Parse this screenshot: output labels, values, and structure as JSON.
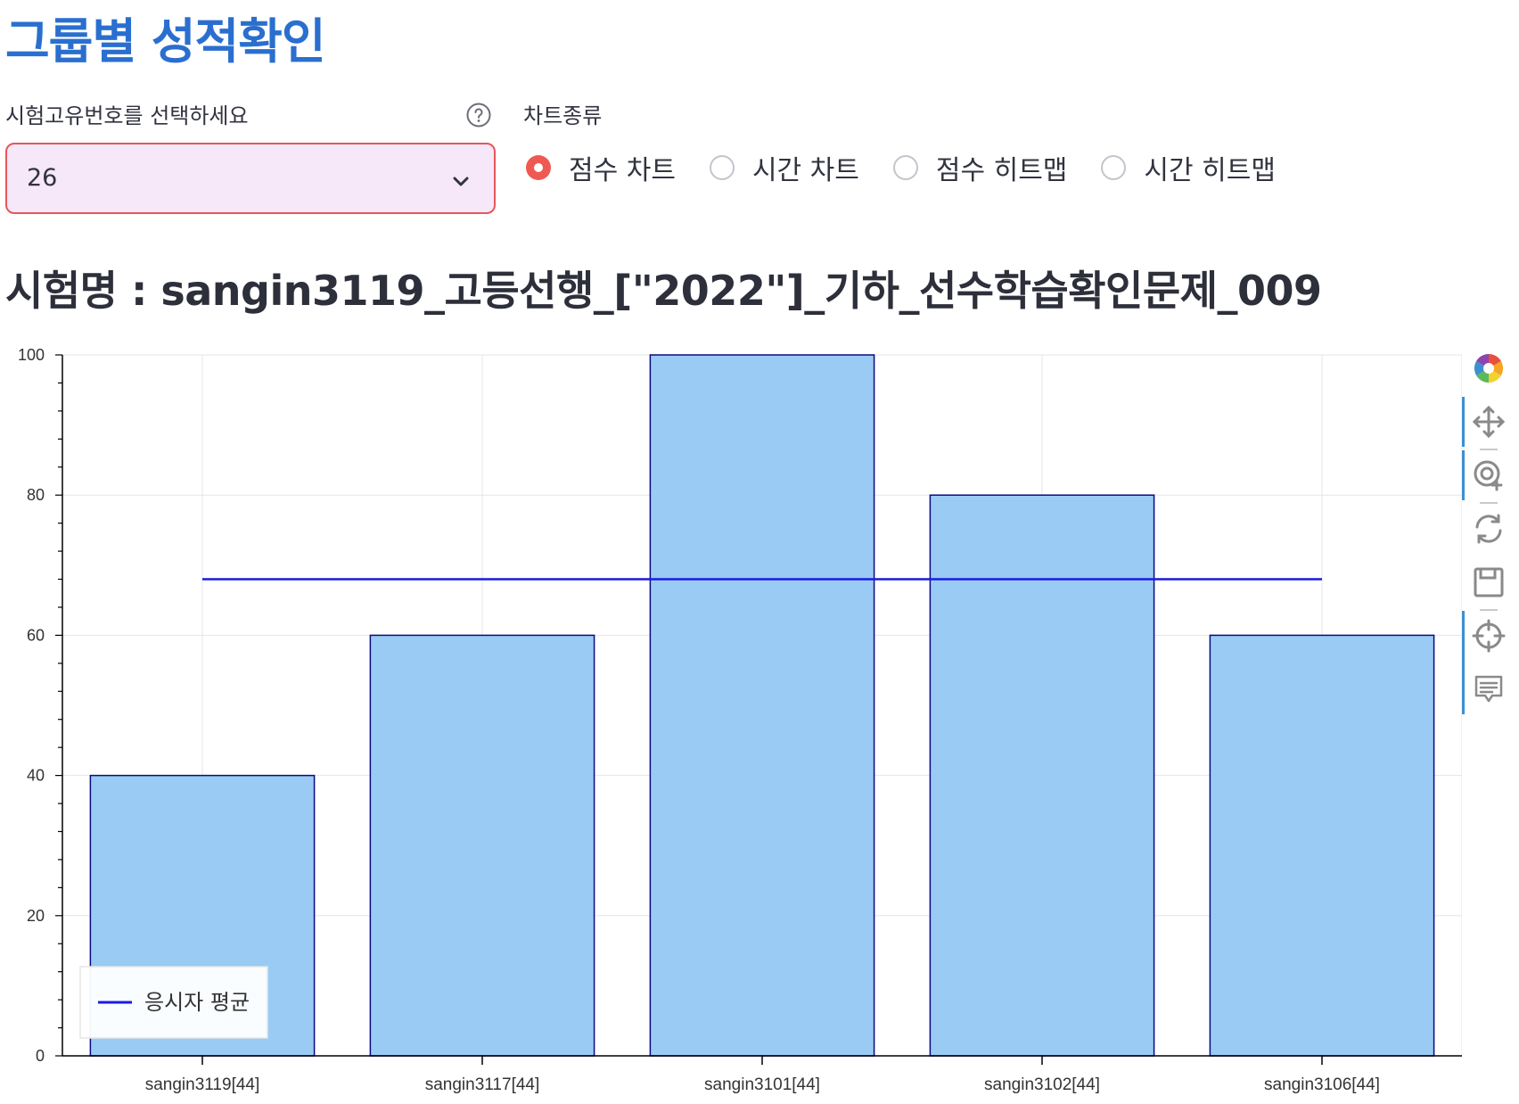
{
  "page": {
    "title": "그룹별 성적확인"
  },
  "exam_select": {
    "label": "시험고유번호를 선택하세요",
    "value": "26",
    "help_icon": "question-circle-icon",
    "dropdown_icon": "chevron-down-icon",
    "border_color": "#e5575c",
    "background_color": "#f6e8f8"
  },
  "chart_type": {
    "label": "차트종류",
    "options": [
      {
        "label": "점수 차트",
        "selected": true
      },
      {
        "label": "시간 차트",
        "selected": false
      },
      {
        "label": "점수 히트맵",
        "selected": false
      },
      {
        "label": "시간 히트맵",
        "selected": false
      }
    ],
    "selected_color": "#ee5a52"
  },
  "exam_title": "시험명 : sangin3119_고등선행_[\"2022\"]_기하_선수학습확인문제_009",
  "chart_data": {
    "type": "bar",
    "categories": [
      "sangin3119[44]",
      "sangin3117[44]",
      "sangin3101[44]",
      "sangin3102[44]",
      "sangin3106[44]"
    ],
    "values": [
      40,
      60,
      100,
      80,
      60
    ],
    "average_line": {
      "name": "응시자 평균",
      "value": 68
    },
    "ylim": [
      0,
      100
    ],
    "yticks": [
      0,
      20,
      40,
      60,
      80,
      100
    ],
    "grid": true,
    "legend_position": "bottom-left",
    "bar_color": "#99cbf4",
    "bar_edge_color": "#0a0a80",
    "line_color": "#1a1ae0"
  },
  "toolbar": {
    "tools": [
      {
        "name": "bokeh-logo-icon",
        "active": false
      },
      {
        "name": "pan-icon",
        "active": true
      },
      {
        "name": "wheel-zoom-icon",
        "active": true
      },
      {
        "name": "reset-icon",
        "active": false
      },
      {
        "name": "save-icon",
        "active": false
      },
      {
        "name": "crosshair-icon",
        "active": true
      },
      {
        "name": "hover-icon",
        "active": true
      }
    ]
  }
}
